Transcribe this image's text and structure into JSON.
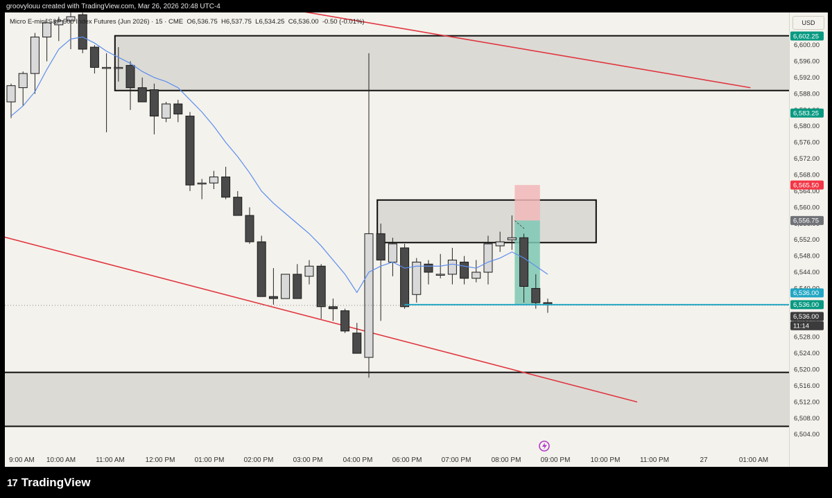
{
  "header": {
    "created_by": "groovylouu created with TradingView.com, Mar 26, 2026 20:48 UTC-4",
    "symbol": "Micro E-mini S&P 500 Index Futures (Jun 2026) · 15 · CME",
    "ohlc": {
      "open_label": "O",
      "open": "6,536.75",
      "high_label": "H",
      "high": "6,537.75",
      "low_label": "L",
      "low": "6,534.25",
      "close_label": "C",
      "close": "6,536.00",
      "change": "-0.50 (-0.01%)"
    }
  },
  "currency": "USD",
  "footer": {
    "brand": "TradingView"
  },
  "colors": {
    "background": "#f4f2ec",
    "bull_candle": "#d9d9d9",
    "bear_candle": "#4a4a4a",
    "ma_line": "#5b8def",
    "trendline": "#e0353f",
    "current_line": "#22a6c4",
    "target_zone": "#7ec8b4",
    "stop_zone": "#f1b7b9"
  },
  "chart_data": {
    "type": "candlestick",
    "ylim": [
      6502.5,
      6606
    ],
    "price_ticks": [
      "6,600.00",
      "6,596.00",
      "6,592.00",
      "6,588.00",
      "6,584.00",
      "6,580.00",
      "6,576.00",
      "6,572.00",
      "6,568.00",
      "6,564.00",
      "6,560.00",
      "6,556.00",
      "6,552.00",
      "6,548.00",
      "6,544.00",
      "6,540.00",
      "6,536.00",
      "6,532.00",
      "6,528.00",
      "6,524.00",
      "6,520.00",
      "6,516.00",
      "6,512.00",
      "6,508.00",
      "6,504.00"
    ],
    "time_labels": [
      "9:00 AM",
      "10:00 AM",
      "11:00 AM",
      "12:00 PM",
      "01:00 PM",
      "02:00 PM",
      "03:00 PM",
      "04:00 PM",
      "06:00 PM",
      "07:00 PM",
      "08:00 PM",
      "09:00 PM",
      "10:00 PM",
      "11:00 PM",
      "27",
      "01:00 AM"
    ],
    "candles": [
      {
        "o": 6586.0,
        "h": 6590.5,
        "l": 6582.0,
        "c": 6590.0
      },
      {
        "o": 6589.5,
        "h": 6593.5,
        "l": 6585.0,
        "c": 6593.0
      },
      {
        "o": 6593.0,
        "h": 6603.0,
        "l": 6588.0,
        "c": 6602.0
      },
      {
        "o": 6602.0,
        "h": 6606.5,
        "l": 6596.0,
        "c": 6605.5
      },
      {
        "o": 6605.0,
        "h": 6607.0,
        "l": 6601.0,
        "c": 6606.0
      },
      {
        "o": 6606.0,
        "h": 6608.0,
        "l": 6599.0,
        "c": 6607.0
      },
      {
        "o": 6607.5,
        "h": 6608.0,
        "l": 6598.0,
        "c": 6599.0
      },
      {
        "o": 6599.5,
        "h": 6600.0,
        "l": 6593.0,
        "c": 6594.5
      },
      {
        "o": 6594.5,
        "h": 6598.0,
        "l": 6578.5,
        "c": 6594.5
      },
      {
        "o": 6594.5,
        "h": 6599.5,
        "l": 6591.0,
        "c": 6594.5
      },
      {
        "o": 6595.0,
        "h": 6596.0,
        "l": 6584.0,
        "c": 6589.5
      },
      {
        "o": 6589.5,
        "h": 6592.0,
        "l": 6586.0,
        "c": 6586.0
      },
      {
        "o": 6589.0,
        "h": 6590.5,
        "l": 6578.0,
        "c": 6582.5
      },
      {
        "o": 6582.0,
        "h": 6586.0,
        "l": 6581.0,
        "c": 6585.5
      },
      {
        "o": 6585.5,
        "h": 6586.5,
        "l": 6581.0,
        "c": 6583.0
      },
      {
        "o": 6582.5,
        "h": 6583.5,
        "l": 6564.0,
        "c": 6565.5
      },
      {
        "o": 6566.0,
        "h": 6567.0,
        "l": 6562.0,
        "c": 6566.0
      },
      {
        "o": 6566.0,
        "h": 6569.0,
        "l": 6564.5,
        "c": 6567.5
      },
      {
        "o": 6567.5,
        "h": 6570.0,
        "l": 6562.0,
        "c": 6562.5
      },
      {
        "o": 6562.5,
        "h": 6564.0,
        "l": 6558.0,
        "c": 6558.0
      },
      {
        "o": 6558.0,
        "h": 6560.0,
        "l": 6551.0,
        "c": 6551.5
      },
      {
        "o": 6551.5,
        "h": 6553.0,
        "l": 6538.0,
        "c": 6538.0
      },
      {
        "o": 6538.0,
        "h": 6545.0,
        "l": 6536.0,
        "c": 6537.5
      },
      {
        "o": 6537.5,
        "h": 6543.5,
        "l": 6538.0,
        "c": 6543.5
      },
      {
        "o": 6543.5,
        "h": 6546.0,
        "l": 6538.5,
        "c": 6537.5
      },
      {
        "o": 6543.0,
        "h": 6547.0,
        "l": 6541.0,
        "c": 6545.5
      },
      {
        "o": 6545.5,
        "h": 6546.0,
        "l": 6532.5,
        "c": 6535.5
      },
      {
        "o": 6535.5,
        "h": 6537.5,
        "l": 6532.0,
        "c": 6535.0
      },
      {
        "o": 6534.5,
        "h": 6535.0,
        "l": 6529.0,
        "c": 6529.5
      },
      {
        "o": 6529.0,
        "h": 6531.5,
        "l": 6524.0,
        "c": 6524.0
      },
      {
        "o": 6523.0,
        "h": 6598.0,
        "l": 6518.0,
        "c": 6553.5
      },
      {
        "o": 6553.5,
        "h": 6556.0,
        "l": 6532.0,
        "c": 6547.0
      },
      {
        "o": 6546.5,
        "h": 6552.5,
        "l": 6543.0,
        "c": 6551.0
      },
      {
        "o": 6550.0,
        "h": 6551.0,
        "l": 6535.0,
        "c": 6535.5
      },
      {
        "o": 6538.5,
        "h": 6547.5,
        "l": 6536.5,
        "c": 6546.5
      },
      {
        "o": 6546.0,
        "h": 6547.0,
        "l": 6541.0,
        "c": 6544.0
      },
      {
        "o": 6543.5,
        "h": 6548.5,
        "l": 6542.5,
        "c": 6543.5
      },
      {
        "o": 6543.5,
        "h": 6550.0,
        "l": 6541.0,
        "c": 6547.0
      },
      {
        "o": 6546.5,
        "h": 6548.0,
        "l": 6541.0,
        "c": 6542.5
      },
      {
        "o": 6542.5,
        "h": 6547.0,
        "l": 6541.5,
        "c": 6544.0
      },
      {
        "o": 6544.0,
        "h": 6553.0,
        "l": 6541.0,
        "c": 6551.0
      },
      {
        "o": 6550.5,
        "h": 6554.0,
        "l": 6549.0,
        "c": 6551.5
      },
      {
        "o": 6552.0,
        "h": 6558.0,
        "l": 6549.5,
        "c": 6552.5
      },
      {
        "o": 6552.5,
        "h": 6553.5,
        "l": 6536.5,
        "c": 6540.5
      },
      {
        "o": 6540.0,
        "h": 6543.5,
        "l": 6535.0,
        "c": 6536.5
      },
      {
        "o": 6536.5,
        "h": 6537.5,
        "l": 6534.0,
        "c": 6536.0
      }
    ],
    "moving_average": [
      6582.5,
      6585.0,
      6588.5,
      6594.0,
      6599.0,
      6601.5,
      6602.0,
      6600.5,
      6598.5,
      6597.0,
      6595.5,
      6593.5,
      6592.0,
      6591.0,
      6589.5,
      6586.5,
      6583.5,
      6580.0,
      6576.0,
      6572.5,
      6568.5,
      6564.0,
      6561.0,
      6558.5,
      6556.0,
      6553.5,
      6550.5,
      6547.0,
      6543.5,
      6539.0,
      6544.0,
      6545.5,
      6546.5,
      6545.0,
      6545.5,
      6545.5,
      6545.5,
      6546.0,
      6545.5,
      6545.0,
      6546.5,
      6547.5,
      6549.0,
      6547.5,
      6545.5,
      6543.5
    ],
    "zones": [
      {
        "name": "upper-supply-zone",
        "from_price": 6602.3,
        "to_price": 6588.8,
        "start_bar": 9,
        "extend_right": true
      },
      {
        "name": "mid-supply-zone",
        "from_price": 6561.8,
        "to_price": 6551.3,
        "start_bar": 31,
        "end_bar": 49
      },
      {
        "name": "lower-demand-zone",
        "from_price": 6519.3,
        "to_price": 6506.0,
        "start_bar": -1,
        "extend_right": true
      }
    ],
    "trendlines": [
      {
        "name": "upper-trendline",
        "from": {
          "bar": 15,
          "price": 6613.0
        },
        "to": {
          "bar": 62,
          "price": 6589.5
        }
      },
      {
        "name": "lower-trendline",
        "from": {
          "bar": -1,
          "price": 6553.0
        },
        "to": {
          "bar": 52.5,
          "price": 6512.0
        }
      }
    ],
    "position": {
      "entry": 6556.75,
      "target": 6536.0,
      "stop": 6565.5,
      "start_bar": 42,
      "end_bar": 44
    },
    "current_price_line": {
      "price": 6536.0,
      "start_bar": 33
    },
    "price_badges": [
      {
        "name": "badge-6602",
        "price": 6602.25,
        "label": "6,602.25",
        "color": "#089981"
      },
      {
        "name": "badge-6583",
        "price": 6583.25,
        "label": "6,583.25",
        "color": "#089981"
      },
      {
        "name": "badge-6565",
        "price": 6565.5,
        "label": "6,565.50",
        "color": "#f23645"
      },
      {
        "name": "badge-6556",
        "price": 6556.75,
        "label": "6,556.75",
        "color": "#6f7277"
      },
      {
        "name": "badge-6536-a",
        "price": 6538.9,
        "label": "6,536.00",
        "color": "#22a6c4"
      },
      {
        "name": "badge-6536-b",
        "price": 6536.0,
        "label": "6,536.00",
        "color": "#089981"
      },
      {
        "name": "badge-6536-c",
        "price": 6533.1,
        "label": "6,536.00",
        "color": "#3b3b3b"
      },
      {
        "name": "badge-countdown",
        "price": 6530.8,
        "label": "11:14",
        "color": "#3b3b3b"
      }
    ]
  }
}
